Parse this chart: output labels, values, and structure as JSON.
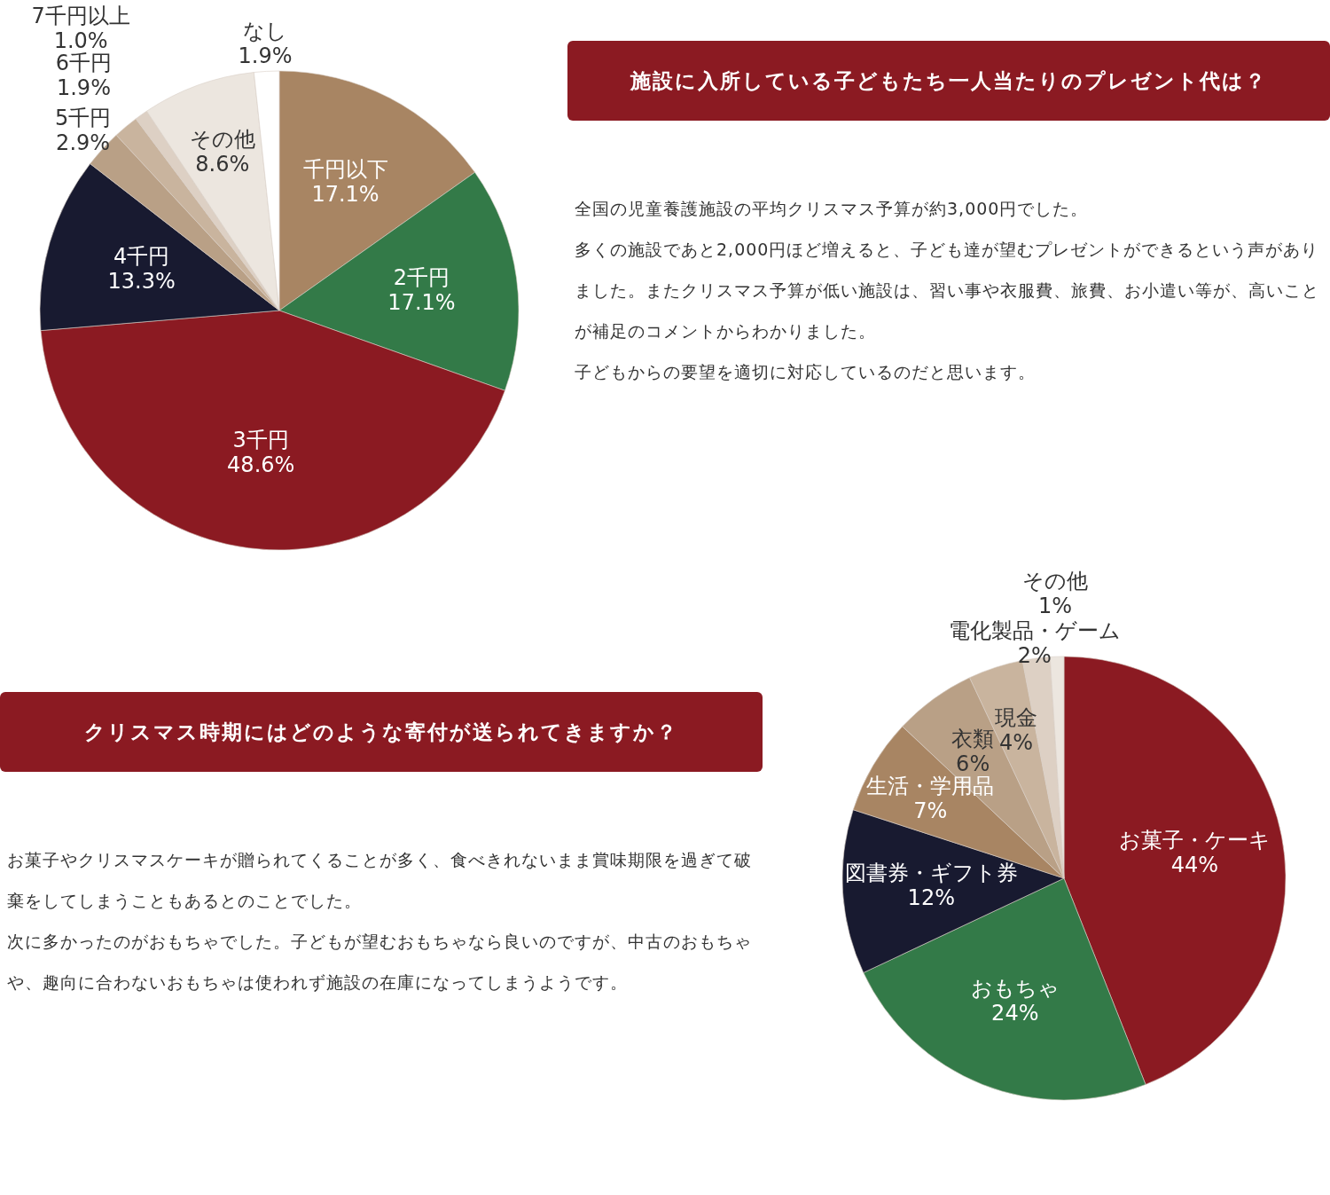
{
  "chart_data": [
    {
      "type": "pie",
      "categories": [
        "千円以下",
        "2千円",
        "3千円",
        "4千円",
        "5千円",
        "6千円",
        "7千円以上",
        "その他",
        "なし"
      ],
      "values": [
        17.1,
        17.1,
        48.6,
        13.3,
        2.9,
        1.9,
        1.0,
        8.6,
        1.9
      ],
      "value_labels": [
        "17.1%",
        "17.1%",
        "48.6%",
        "13.3%",
        "2.9%",
        "1.9%",
        "1.0%",
        "8.6%",
        "1.9%"
      ],
      "colors": [
        "#a88563",
        "#337a48",
        "#8b1a22",
        "#181a30",
        "#b9a086",
        "#c9b49e",
        "#ddd0c4",
        "#ece6df",
        "#ffffff"
      ]
    },
    {
      "type": "other",
      "title": "施設に入所している子どもたち一人当たりのプレゼント代は？",
      "annotations": [
        "全国の児童養護施設の平均クリスマス予算が約3,000円でした。",
        "多くの施設であと2,000円ほど増えると、子ども達が望むプレゼントができるという声がありました。またクリスマス予算が低い施設は、習い事や衣服費、旅費、お小遣い等が、高いことが補足のコメントからわかりました。",
        "子どもからの要望を適切に対応しているのだと思います。"
      ]
    },
    {
      "type": "other",
      "title": "クリスマス時期にはどのような寄付が送られてきますか？",
      "annotations": [
        "お菓子やクリスマスケーキが贈られてくることが多く、食べきれないまま賞味期限を過ぎて破棄をしてしまうこともあるとのことでした。",
        "次に多かったのがおもちゃでした。子どもが望むおもちゃなら良いのですが、中古のおもちゃや、趣向に合わないおもちゃは使われず施設の在庫になってしまうようです。"
      ]
    },
    {
      "type": "pie",
      "categories": [
        "お菓子・ケーキ",
        "おもちゃ",
        "図書券・ギフト券",
        "生活・学用品",
        "衣類",
        "現金",
        "電化製品・ゲーム",
        "その他"
      ],
      "values": [
        44,
        24,
        12,
        7,
        6,
        4,
        2,
        1
      ],
      "value_labels": [
        "44%",
        "24%",
        "12%",
        "7%",
        "6%",
        "4%",
        "2%",
        "1%"
      ],
      "colors": [
        "#8b1a22",
        "#337a48",
        "#181a30",
        "#a88563",
        "#b9a086",
        "#c9b49e",
        "#ddd0c4",
        "#ece6df"
      ]
    }
  ]
}
